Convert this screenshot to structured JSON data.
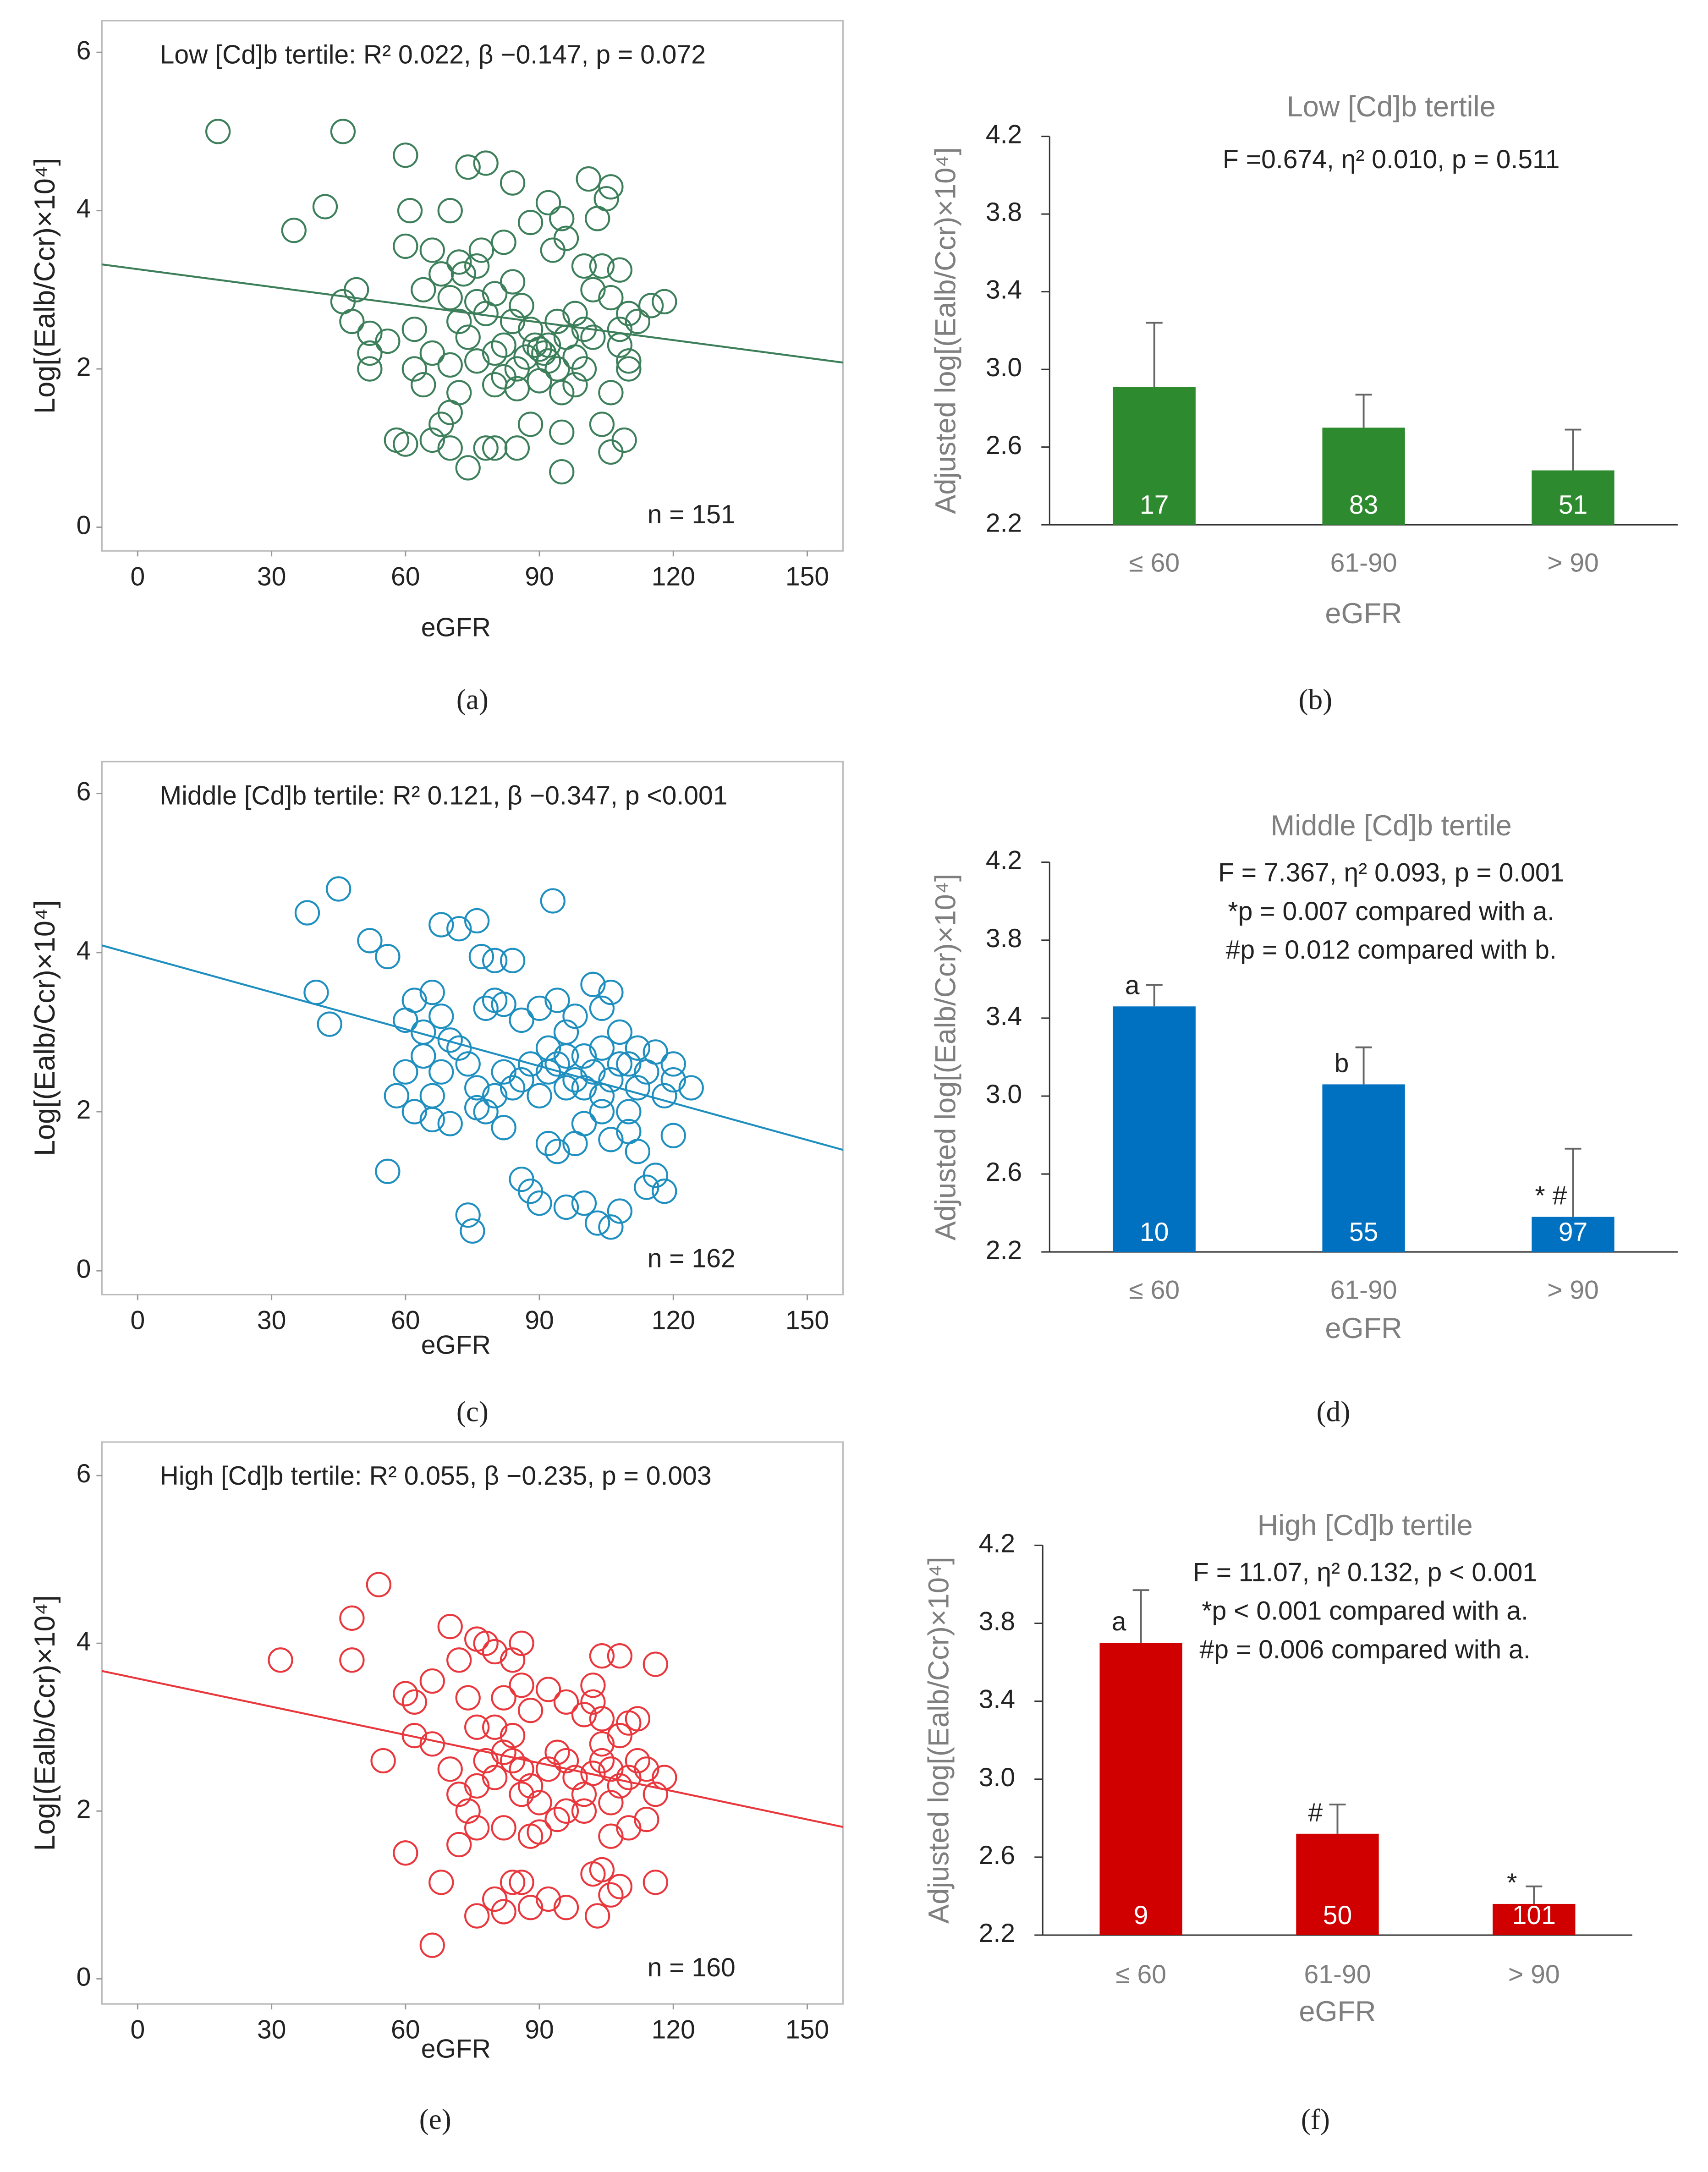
{
  "chart_data": [
    {
      "type": "scatter",
      "title": "Low [Cd]b tertile: R² 0.022, β −0.147, p = 0.072",
      "n_label": "n = 151",
      "xlabel": "eGFR",
      "ylabel": "Log[(Ealb/Ccr)×10⁴]",
      "caption": "(a)",
      "color": "#3d7f5a",
      "xlim": [
        -8,
        158
      ],
      "ylim": [
        -0.3,
        6.4
      ],
      "xticks": [
        0,
        30,
        60,
        90,
        120,
        150
      ],
      "yticks": [
        0,
        2,
        4,
        6
      ],
      "x": [
        18,
        46,
        60,
        42,
        35,
        61,
        74,
        78,
        84,
        101,
        106,
        105,
        92,
        95,
        88,
        82,
        70,
        72,
        76,
        66,
        60,
        49,
        46,
        48,
        52,
        52,
        52,
        56,
        62,
        64,
        68,
        70,
        72,
        76,
        78,
        80,
        84,
        86,
        88,
        90,
        91,
        92,
        89,
        87,
        85,
        82,
        80,
        76,
        74,
        70,
        66,
        64,
        62,
        94,
        96,
        98,
        100,
        102,
        104,
        106,
        108,
        110,
        112,
        115,
        118,
        110,
        108,
        100,
        98,
        95,
        90,
        85,
        80,
        72,
        70,
        68,
        66,
        60,
        58,
        70,
        78,
        80,
        85,
        74,
        88,
        95,
        106,
        109,
        104,
        95,
        106,
        110,
        93,
        96,
        100,
        108,
        84,
        82,
        92,
        94,
        98,
        102,
        77,
        73,
        103
      ],
      "values": [
        5.0,
        5.0,
        4.7,
        4.05,
        3.75,
        4.0,
        4.55,
        4.6,
        4.35,
        4.4,
        4.3,
        4.15,
        4.1,
        3.9,
        3.85,
        3.6,
        4.0,
        3.35,
        3.3,
        3.5,
        3.55,
        3.0,
        2.85,
        2.6,
        2.45,
        2.2,
        2.0,
        2.35,
        2.5,
        3.0,
        3.2,
        2.9,
        2.6,
        2.85,
        2.7,
        2.95,
        3.1,
        2.8,
        2.5,
        2.25,
        2.2,
        2.1,
        2.3,
        2.15,
        2.0,
        1.9,
        2.2,
        2.1,
        2.4,
        2.05,
        2.2,
        1.8,
        2.0,
        2.6,
        2.4,
        2.7,
        2.5,
        3.0,
        3.3,
        2.9,
        2.5,
        2.7,
        2.6,
        2.8,
        2.85,
        2.0,
        2.3,
        2.0,
        1.8,
        1.7,
        1.85,
        1.75,
        1.8,
        1.7,
        1.45,
        1.3,
        1.1,
        1.05,
        1.1,
        1.0,
        1.0,
        1.0,
        1.0,
        0.75,
        1.3,
        1.2,
        0.95,
        1.1,
        1.3,
        0.7,
        1.7,
        2.1,
        3.5,
        3.65,
        3.3,
        3.25,
        2.6,
        2.3,
        2.3,
        2.0,
        2.15,
        2.4,
        3.5,
        3.2,
        3.9
      ],
      "fit": {
        "x": [
          -8,
          158
        ],
        "values": [
          3.32,
          2.08
        ]
      }
    },
    {
      "type": "bar",
      "title": "Low [Cd]b tertile",
      "annotations": [
        "F =0.674, η² 0.010, p = 0.511"
      ],
      "xlabel": "eGFR",
      "ylabel": "Adjusted log[(Ealb/Ccr)×10⁴]",
      "caption": "(b)",
      "color": "#2e8a2e",
      "categories": [
        "≤ 60",
        "61-90",
        "> 90"
      ],
      "values": [
        2.91,
        2.7,
        2.48
      ],
      "errors": [
        0.33,
        0.17,
        0.21
      ],
      "counts": [
        17,
        83,
        51
      ],
      "ylim": [
        2.2,
        4.2
      ],
      "yticks": [
        2.2,
        2.6,
        {
          "value": 3,
          "label": "3.0"
        },
        3.4,
        3.8,
        4.2
      ]
    },
    {
      "type": "scatter",
      "title": "Middle [Cd]b tertile: R² 0.121, β −0.347, p <0.001",
      "n_label": "n = 162",
      "xlabel": "eGFR",
      "ylabel": "Log[(Ealb/Ccr)×10⁴]",
      "caption": "(c)",
      "color": "#1f8fc0",
      "xlim": [
        -8,
        158
      ],
      "ylim": [
        -0.3,
        6.4
      ],
      "xticks": [
        0,
        30,
        60,
        90,
        120,
        150
      ],
      "yticks": [
        0,
        2,
        4,
        6
      ],
      "x": [
        38,
        45,
        52,
        93,
        68,
        72,
        76,
        40,
        43,
        56,
        62,
        66,
        60,
        64,
        68,
        77,
        80,
        84,
        78,
        80,
        82,
        86,
        90,
        94,
        96,
        98,
        102,
        106,
        104,
        108,
        112,
        116,
        120,
        124,
        120,
        118,
        114,
        110,
        106,
        104,
        102,
        100,
        98,
        96,
        94,
        92,
        90,
        88,
        86,
        84,
        82,
        80,
        78,
        76,
        74,
        72,
        70,
        68,
        66,
        64,
        62,
        60,
        58,
        66,
        70,
        76,
        82,
        86,
        88,
        90,
        92,
        94,
        96,
        100,
        103,
        106,
        108,
        114,
        116,
        118,
        112,
        110,
        106,
        104,
        100,
        98,
        56,
        74,
        75,
        120,
        112,
        108,
        100,
        96,
        92,
        104,
        110
      ],
      "values": [
        4.5,
        4.8,
        4.15,
        4.65,
        4.35,
        4.3,
        4.4,
        3.5,
        3.1,
        3.95,
        3.4,
        3.5,
        3.15,
        3.0,
        3.2,
        3.95,
        3.9,
        3.9,
        3.3,
        3.4,
        3.35,
        3.15,
        3.3,
        3.4,
        3.0,
        3.2,
        3.6,
        3.5,
        3.3,
        3.0,
        2.8,
        2.75,
        2.4,
        2.3,
        2.6,
        2.2,
        2.5,
        2.6,
        2.4,
        2.2,
        2.5,
        2.7,
        2.4,
        2.3,
        2.6,
        2.5,
        2.2,
        2.6,
        2.4,
        2.3,
        2.5,
        2.2,
        2.0,
        2.3,
        2.6,
        2.8,
        2.9,
        2.5,
        2.2,
        2.7,
        2.0,
        2.5,
        2.2,
        1.9,
        1.85,
        2.05,
        1.8,
        1.15,
        1.0,
        0.85,
        1.6,
        1.5,
        0.8,
        0.85,
        0.6,
        0.55,
        0.75,
        1.05,
        1.2,
        1.0,
        1.5,
        1.75,
        1.65,
        2.0,
        1.85,
        1.6,
        1.25,
        0.7,
        0.5,
        1.7,
        2.3,
        2.6,
        2.3,
        2.7,
        2.8,
        2.8,
        2.0
      ],
      "fit": {
        "x": [
          -8,
          158
        ],
        "values": [
          4.09,
          1.52
        ]
      }
    },
    {
      "type": "bar",
      "title": "Middle [Cd]b tertile",
      "annotations": [
        "F = 7.367, η² 0.093, p = 0.001",
        "*p = 0.007 compared with a.",
        "#p = 0.012 compared with b."
      ],
      "xlabel": "eGFR",
      "ylabel": "Adjusted log[(Ealb/Ccr)×10⁴]",
      "caption": "(d)",
      "color": "#0070c0",
      "categories": [
        "≤ 60",
        "61-90",
        "> 90"
      ],
      "values": [
        3.46,
        3.06,
        2.38
      ],
      "errors": [
        0.11,
        0.19,
        0.35
      ],
      "counts": [
        10,
        55,
        97
      ],
      "bar_labels": [
        "a",
        "b",
        "* #"
      ],
      "ylim": [
        2.2,
        4.2
      ],
      "yticks": [
        2.2,
        2.6,
        {
          "value": 3,
          "label": "3.0"
        },
        3.4,
        3.8,
        4.2
      ]
    },
    {
      "type": "scatter",
      "title": "High [Cd]b tertile: R² 0.055, β −0.235, p = 0.003",
      "n_label": "n = 160",
      "xlabel": "eGFR",
      "ylabel": "Log[(Ealb/Ccr)×10⁴]",
      "caption": "(e)",
      "color": "#e8383d",
      "xlim": [
        -8,
        158
      ],
      "ylim": [
        -0.3,
        6.4
      ],
      "xticks": [
        0,
        30,
        60,
        90,
        120,
        150
      ],
      "yticks": [
        0,
        2,
        4,
        6
      ],
      "x": [
        32,
        48,
        54,
        48,
        55,
        60,
        62,
        62,
        66,
        66,
        70,
        72,
        74,
        76,
        78,
        80,
        84,
        86,
        76,
        80,
        82,
        86,
        88,
        92,
        96,
        100,
        102,
        104,
        108,
        112,
        116,
        104,
        102,
        60,
        68,
        66,
        76,
        80,
        82,
        84,
        86,
        88,
        92,
        96,
        102,
        104,
        103,
        106,
        108,
        116,
        70,
        72,
        74,
        76,
        78,
        80,
        82,
        84,
        86,
        88,
        90,
        92,
        94,
        96,
        98,
        100,
        102,
        104,
        106,
        108,
        110,
        112,
        114,
        116,
        118,
        106,
        100,
        94,
        88,
        82,
        76,
        72,
        90,
        106,
        110,
        114,
        104,
        108,
        110,
        84,
        96,
        86
      ],
      "values": [
        3.8,
        4.3,
        4.7,
        3.8,
        2.6,
        3.4,
        3.3,
        2.9,
        3.55,
        2.8,
        4.2,
        3.8,
        3.35,
        4.05,
        4.0,
        3.9,
        3.8,
        4.0,
        3.0,
        3.0,
        3.35,
        3.5,
        3.2,
        3.45,
        3.3,
        3.15,
        3.5,
        3.85,
        3.85,
        3.1,
        3.75,
        3.1,
        3.3,
        1.5,
        1.15,
        0.4,
        0.75,
        0.95,
        0.8,
        1.15,
        1.15,
        0.85,
        0.95,
        0.85,
        1.25,
        1.3,
        0.75,
        1.0,
        1.1,
        1.15,
        2.5,
        2.2,
        2.0,
        2.3,
        2.6,
        2.4,
        2.7,
        2.6,
        2.5,
        2.3,
        2.1,
        2.5,
        2.7,
        2.6,
        2.4,
        2.2,
        2.45,
        2.6,
        2.5,
        2.3,
        2.4,
        2.6,
        2.5,
        2.2,
        2.4,
        2.1,
        2.0,
        1.9,
        1.7,
        1.8,
        1.8,
        1.6,
        1.75,
        1.7,
        1.8,
        1.9,
        2.8,
        2.9,
        3.05,
        2.9,
        2.0,
        2.2
      ],
      "fit": {
        "x": [
          -8,
          158
        ],
        "values": [
          3.67,
          1.81
        ]
      }
    },
    {
      "type": "bar",
      "title": "High [Cd]b tertile",
      "annotations": [
        "F = 11.07, η² 0.132, p < 0.001",
        "*p < 0.001 compared with a.",
        "#p = 0.006 compared with a."
      ],
      "xlabel": "eGFR",
      "ylabel": "Adjusted log[(Ealb/Ccr)×10⁴]",
      "caption": "(f)",
      "color": "#d00000",
      "categories": [
        "≤ 60",
        "61-90",
        "> 90"
      ],
      "values": [
        3.7,
        2.72,
        2.36
      ],
      "errors": [
        0.27,
        0.15,
        0.09
      ],
      "counts": [
        9,
        50,
        101
      ],
      "bar_labels": [
        "a",
        "#",
        "*"
      ],
      "ylim": [
        2.2,
        4.2
      ],
      "yticks": [
        2.2,
        2.6,
        {
          "value": 3,
          "label": "3.0"
        },
        3.4,
        3.8,
        4.2
      ]
    }
  ]
}
